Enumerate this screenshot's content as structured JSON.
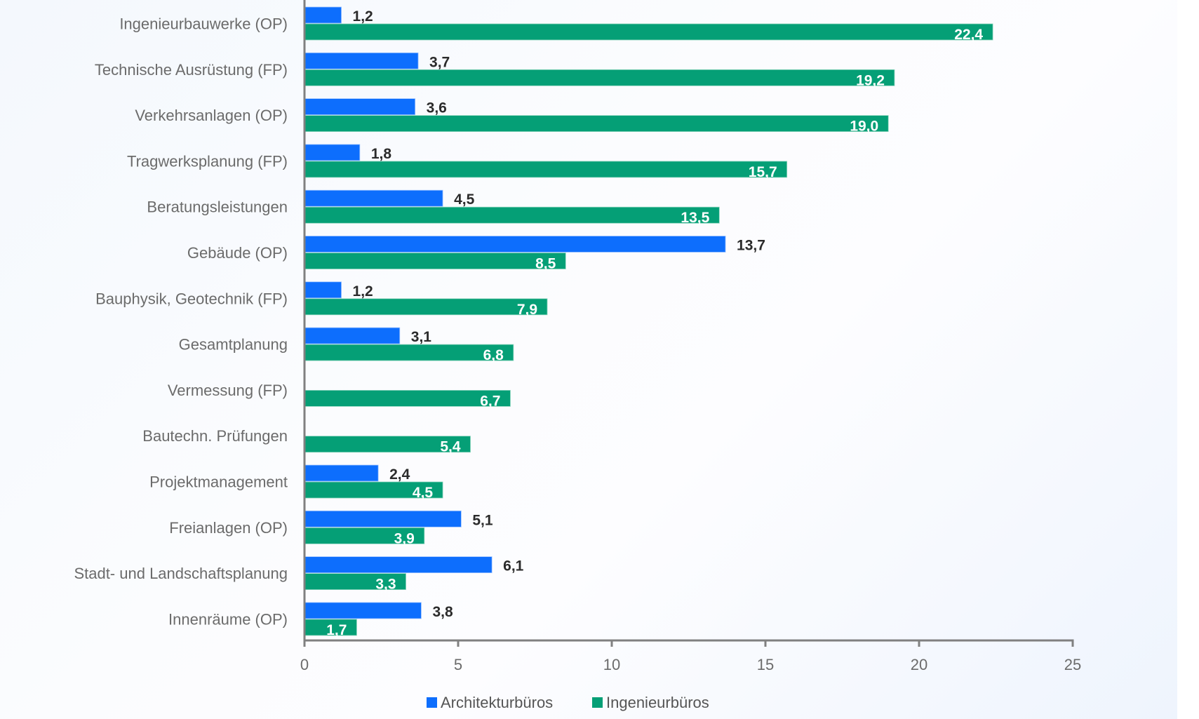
{
  "chart_data": {
    "type": "bar",
    "orientation": "horizontal",
    "categories": [
      "Ingenieurbauwerke (OP)",
      "Technische Ausrüstung (FP)",
      "Verkehrsanlagen (OP)",
      "Tragwerksplanung (FP)",
      "Beratungsleistungen",
      "Gebäude (OP)",
      "Bauphysik, Geotechnik (FP)",
      "Gesamtplanung",
      "Vermessung (FP)",
      "Bautechn. Prüfungen",
      "Projektmanagement",
      "Freianlagen (OP)",
      "Stadt- und Landschaftsplanung",
      "Innenräume (OP)"
    ],
    "series": [
      {
        "name": "Architekturbüros",
        "color": "#0d6efd",
        "values": [
          1.2,
          3.7,
          3.6,
          1.8,
          4.5,
          13.7,
          1.2,
          3.1,
          null,
          null,
          2.4,
          5.1,
          6.1,
          3.8
        ],
        "labels": [
          "1,2",
          "3,7",
          "3,6",
          "1,8",
          "4,5",
          "13,7",
          "1,2",
          "3,1",
          null,
          null,
          "2,4",
          "5,1",
          "6,1",
          "3,8"
        ]
      },
      {
        "name": "Ingenieurbüros",
        "color": "#059f76",
        "values": [
          22.4,
          19.2,
          19.0,
          15.7,
          13.5,
          8.5,
          7.9,
          6.8,
          6.7,
          5.4,
          4.5,
          3.9,
          3.3,
          1.7
        ],
        "labels": [
          "22,4",
          "19,2",
          "19,0",
          "15,7",
          "13,5",
          "8,5",
          "7,9",
          "6,8",
          "6,7",
          "5,4",
          "4,5",
          "3,9",
          "3,3",
          "1,7"
        ]
      }
    ],
    "title": "",
    "xlabel": "",
    "ylabel": "",
    "xlim": [
      0,
      25
    ],
    "xticks": [
      "0",
      "5",
      "10",
      "15",
      "20",
      "25"
    ],
    "xtick_values": [
      0,
      5,
      10,
      15,
      20,
      25
    ],
    "grid": false,
    "legend_position": "bottom-center"
  }
}
